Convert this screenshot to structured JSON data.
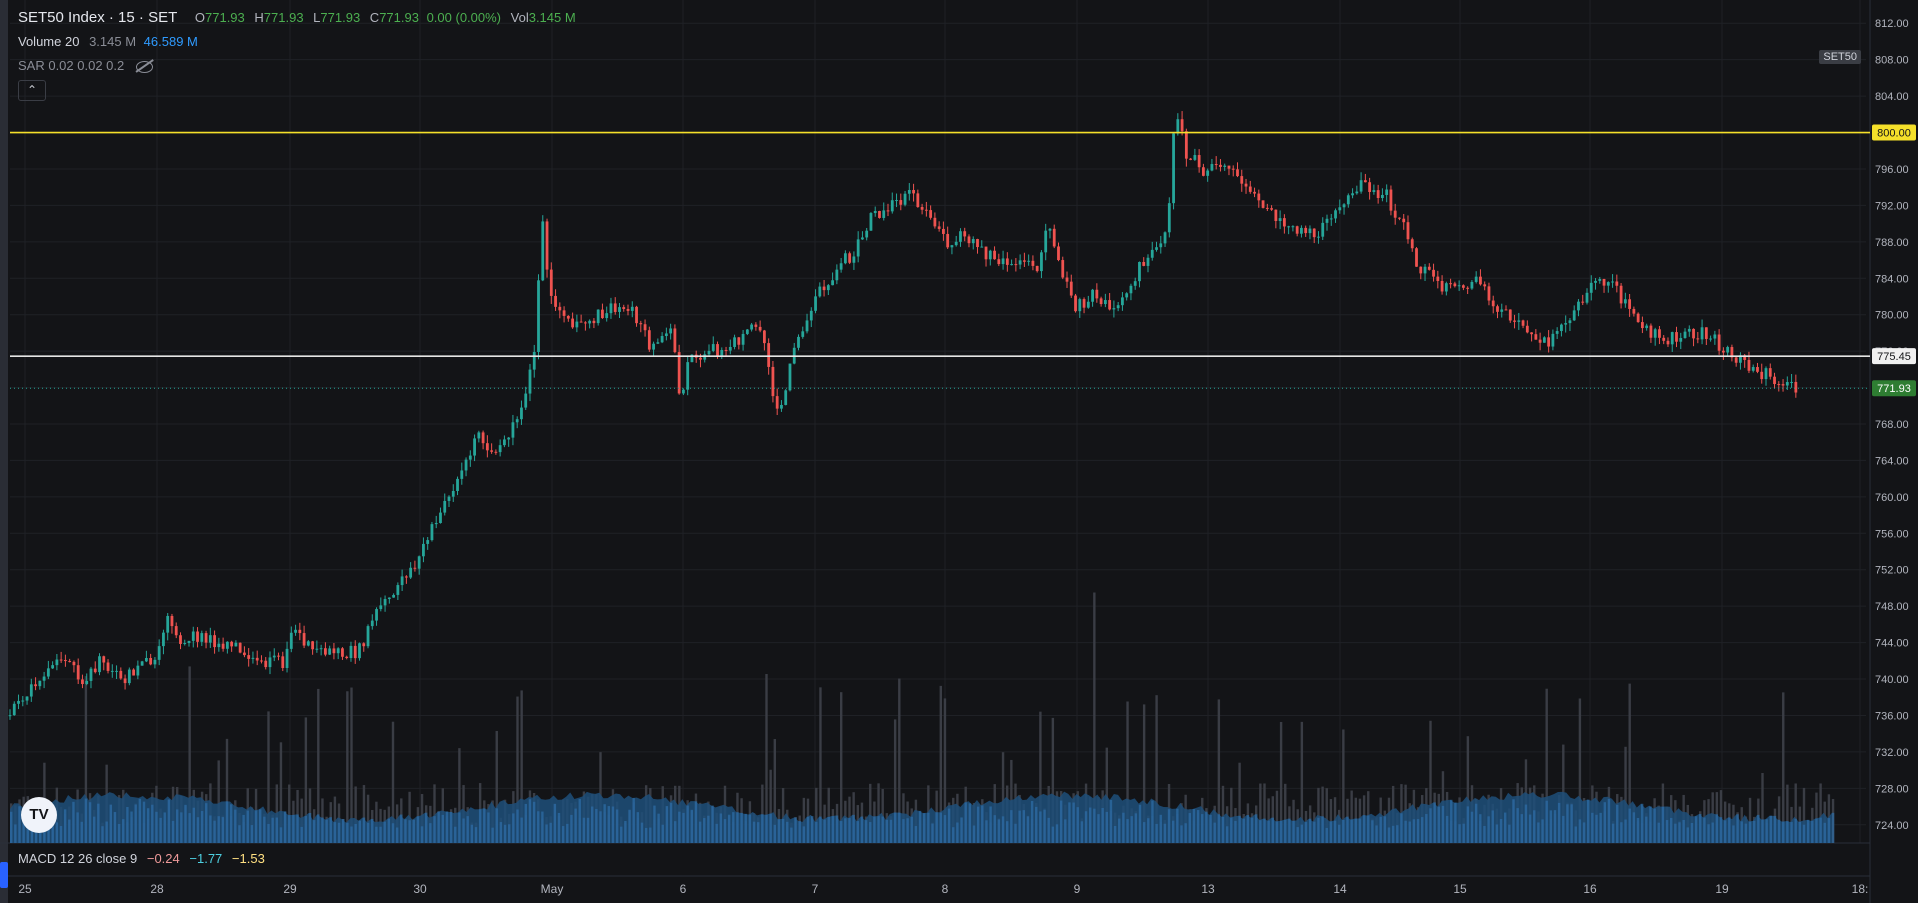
{
  "legend": {
    "symbol": "SET50 Index · 15 · SET",
    "ohlc": {
      "o_label": "O",
      "o": "771.93",
      "h_label": "H",
      "h": "771.93",
      "l_label": "L",
      "l": "771.93",
      "c_label": "C",
      "c": "771.93",
      "change": "0.00 (0.00%)",
      "vol_label": "Vol",
      "vol": "3.145 M"
    },
    "volume_label": "Volume 20",
    "volume_val": "3.145 M",
    "volume_ma": "46.589 M",
    "sar_label": "SAR 0.02 0.02 0.2",
    "macd_label": "MACD 12 26 close 9",
    "macd_vals": [
      "−0.24",
      "−1.77",
      "−1.53"
    ]
  },
  "symbol_badge": "SET50",
  "colors": {
    "up": "#26a69a",
    "down": "#ef5350",
    "bg": "#131417",
    "grid": "#1f2126",
    "hline_yellow": "#f5e02a",
    "hline_white": "#e6e6e6",
    "last_price": "#26a69a",
    "volume": "#1f4f7a",
    "volume_ma": "#2d6ea8"
  },
  "chart_data": {
    "type": "candlestick",
    "y_axis": {
      "min": 722,
      "max": 814,
      "ticks": [
        "812.00",
        "808.00",
        "804.00",
        "800.00",
        "796.00",
        "792.00",
        "788.00",
        "784.00",
        "780.00",
        "776.00",
        "772.00",
        "768.00",
        "764.00",
        "760.00",
        "756.00",
        "752.00",
        "748.00",
        "744.00",
        "740.00",
        "736.00",
        "732.00",
        "728.00",
        "724.00"
      ]
    },
    "x_labels": [
      "25",
      "28",
      "29",
      "30",
      "May",
      "6",
      "7",
      "8",
      "9",
      "13",
      "14",
      "15",
      "16",
      "19",
      "18:"
    ],
    "horizontal_lines": [
      {
        "price": 800.0,
        "label": "800.00",
        "color": "yellow"
      },
      {
        "price": 775.45,
        "label": "775.45",
        "color": "white"
      }
    ],
    "last_price": {
      "price": 771.93,
      "label": "771.93"
    },
    "series": [
      {
        "name": "price",
        "path_points": [
          [
            0.0,
            736.0
          ],
          [
            0.01,
            739.0
          ],
          [
            0.02,
            741.0
          ],
          [
            0.03,
            742.0
          ],
          [
            0.04,
            740.0
          ],
          [
            0.05,
            742.0
          ],
          [
            0.06,
            740.0
          ],
          [
            0.07,
            741.0
          ],
          [
            0.08,
            743.0
          ],
          [
            0.085,
            747.0
          ],
          [
            0.09,
            744.0
          ],
          [
            0.1,
            745.0
          ],
          [
            0.11,
            744.0
          ],
          [
            0.12,
            744.0
          ],
          [
            0.13,
            743.0
          ],
          [
            0.14,
            742.0
          ],
          [
            0.15,
            742.0
          ],
          [
            0.155,
            746.0
          ],
          [
            0.16,
            744.0
          ],
          [
            0.17,
            743.0
          ],
          [
            0.18,
            743.0
          ],
          [
            0.19,
            743.0
          ],
          [
            0.2,
            748.0
          ],
          [
            0.21,
            750.0
          ],
          [
            0.22,
            752.0
          ],
          [
            0.23,
            757.0
          ],
          [
            0.24,
            760.0
          ],
          [
            0.25,
            765.0
          ],
          [
            0.255,
            767.0
          ],
          [
            0.26,
            765.0
          ],
          [
            0.27,
            766.0
          ],
          [
            0.28,
            771.0
          ],
          [
            0.285,
            775.0
          ],
          [
            0.29,
            790.0
          ],
          [
            0.295,
            781.0
          ],
          [
            0.3,
            780.0
          ],
          [
            0.31,
            779.0
          ],
          [
            0.32,
            780.0
          ],
          [
            0.33,
            781.0
          ],
          [
            0.34,
            780.0
          ],
          [
            0.35,
            776.0
          ],
          [
            0.36,
            779.0
          ],
          [
            0.365,
            771.0
          ],
          [
            0.37,
            775.0
          ],
          [
            0.38,
            776.0
          ],
          [
            0.39,
            776.0
          ],
          [
            0.4,
            778.0
          ],
          [
            0.41,
            779.0
          ],
          [
            0.415,
            771.0
          ],
          [
            0.42,
            770.0
          ],
          [
            0.43,
            778.0
          ],
          [
            0.44,
            782.0
          ],
          [
            0.45,
            785.0
          ],
          [
            0.46,
            787.0
          ],
          [
            0.47,
            791.0
          ],
          [
            0.48,
            792.0
          ],
          [
            0.49,
            793.0
          ],
          [
            0.5,
            791.0
          ],
          [
            0.51,
            788.0
          ],
          [
            0.52,
            789.0
          ],
          [
            0.53,
            787.0
          ],
          [
            0.54,
            786.0
          ],
          [
            0.55,
            786.0
          ],
          [
            0.56,
            785.0
          ],
          [
            0.565,
            790.0
          ],
          [
            0.57,
            786.0
          ],
          [
            0.58,
            781.0
          ],
          [
            0.59,
            782.0
          ],
          [
            0.6,
            781.0
          ],
          [
            0.61,
            783.0
          ],
          [
            0.62,
            787.0
          ],
          [
            0.63,
            789.0
          ],
          [
            0.635,
            803.0
          ],
          [
            0.64,
            798.0
          ],
          [
            0.65,
            796.0
          ],
          [
            0.66,
            796.0
          ],
          [
            0.67,
            795.0
          ],
          [
            0.68,
            793.0
          ],
          [
            0.69,
            790.0
          ],
          [
            0.7,
            789.0
          ],
          [
            0.71,
            789.0
          ],
          [
            0.72,
            790.0
          ],
          [
            0.73,
            794.0
          ],
          [
            0.74,
            794.0
          ],
          [
            0.75,
            793.0
          ],
          [
            0.76,
            789.0
          ],
          [
            0.765,
            786.0
          ],
          [
            0.77,
            785.0
          ],
          [
            0.78,
            783.0
          ],
          [
            0.79,
            783.0
          ],
          [
            0.8,
            784.0
          ],
          [
            0.81,
            781.0
          ],
          [
            0.82,
            779.0
          ],
          [
            0.83,
            778.0
          ],
          [
            0.84,
            777.0
          ],
          [
            0.85,
            780.0
          ],
          [
            0.86,
            783.0
          ],
          [
            0.87,
            784.0
          ],
          [
            0.88,
            781.0
          ],
          [
            0.89,
            779.0
          ],
          [
            0.9,
            777.0
          ],
          [
            0.91,
            778.0
          ],
          [
            0.92,
            778.0
          ],
          [
            0.93,
            777.0
          ],
          [
            0.94,
            775.0
          ],
          [
            0.95,
            774.0
          ],
          [
            0.96,
            773.0
          ],
          [
            0.97,
            772.0
          ],
          [
            0.975,
            771.93
          ]
        ]
      }
    ],
    "volume": {
      "ma_level_fraction": 0.45,
      "axis_max_fraction": 1.0
    }
  }
}
